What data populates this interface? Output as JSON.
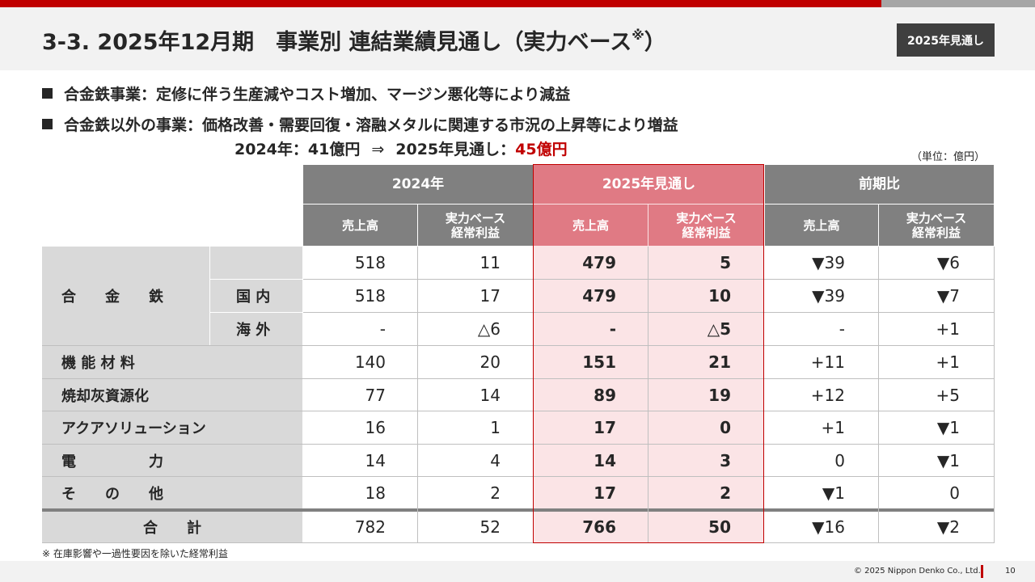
{
  "header": {
    "title": "3-3. 2025年12月期　事業別 連結業績見通し（実力ベース",
    "title_mark": "※",
    "title_close": "）",
    "badge": "2025年見通し"
  },
  "bullets": [
    "合金鉄事業：定修に伴う生産減やコスト増加、マージン悪化等により減益",
    "合金鉄以外の事業：価格改善・需要回復・溶融メタルに関連する市況の上昇等により増益"
  ],
  "subline": {
    "prev": "2024年：41億円",
    "arrow": "⇒",
    "next_label": "2025年見通し：",
    "next_value": "45億円"
  },
  "unit": "（単位：億円）",
  "table": {
    "groups": [
      "2024年",
      "2025年見通し",
      "前期比"
    ],
    "subheaders": [
      "売上高",
      "実力ベース\n経常利益",
      "売上高",
      "実力ベース\n経常利益",
      "売上高",
      "実力ベース\n経常利益"
    ],
    "rows": [
      {
        "label": "合　　金　　鉄",
        "sub": "",
        "values": [
          "518",
          "11",
          "479",
          "5",
          "▼39",
          "▼6"
        ]
      },
      {
        "label": "",
        "sub": "国 内",
        "values": [
          "518",
          "17",
          "479",
          "10",
          "▼39",
          "▼7"
        ]
      },
      {
        "label": "",
        "sub": "海 外",
        "values": [
          "-",
          "△6",
          "-",
          "△5",
          "-",
          "+1"
        ]
      },
      {
        "label": "機 能 材 料",
        "sub": "",
        "values": [
          "140",
          "20",
          "151",
          "21",
          "+11",
          "+1"
        ]
      },
      {
        "label": "焼却灰資源化",
        "sub": "",
        "values": [
          "77",
          "14",
          "89",
          "19",
          "+12",
          "+5"
        ]
      },
      {
        "label": "アクアソリューション",
        "sub": "",
        "values": [
          "16",
          "1",
          "17",
          "0",
          "+1",
          "▼1"
        ]
      },
      {
        "label": "電　　　　　力",
        "sub": "",
        "values": [
          "14",
          "4",
          "14",
          "3",
          "0",
          "▼1"
        ]
      },
      {
        "label": "そ　　の　　他",
        "sub": "",
        "values": [
          "18",
          "2",
          "17",
          "2",
          "▼1",
          "0"
        ]
      },
      {
        "label": "合　　計",
        "sub": "",
        "values": [
          "782",
          "52",
          "766",
          "50",
          "▼16",
          "▼2"
        ]
      }
    ]
  },
  "footnote": "※ 在庫影響や一過性要因を除いた経常利益",
  "footer": {
    "copyright": "© 2025 Nippon Denko Co., Ltd.",
    "page": "10"
  },
  "colors": {
    "accent_red": "#c00000",
    "header_gray": "#808080",
    "forecast_pink": "#e07a84",
    "forecast_fill": "#fbe4e6"
  }
}
